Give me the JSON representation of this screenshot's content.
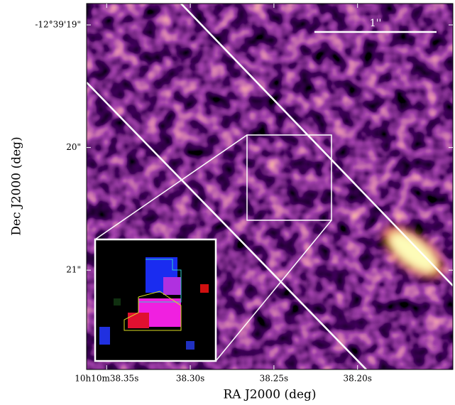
{
  "chart_data": {
    "type": "image",
    "xlabel": "RA J2000 (deg)",
    "ylabel": "Dec J2000 (deg)",
    "scalebar_label": "1''",
    "xlim": [
      38.362,
      38.143
    ],
    "ylim": [
      21.81,
      18.826
    ],
    "xticks": [
      {
        "value": 38.35,
        "label": "10h10m38.35s"
      },
      {
        "value": 38.3,
        "label": "38.30s"
      },
      {
        "value": 38.25,
        "label": "38.25s"
      },
      {
        "value": 38.2,
        "label": "38.20s"
      }
    ],
    "yticks": [
      {
        "value": 19,
        "label": "-12°39'19\""
      },
      {
        "value": 20,
        "label": "20\""
      },
      {
        "value": 21,
        "label": "21\""
      }
    ]
  }
}
